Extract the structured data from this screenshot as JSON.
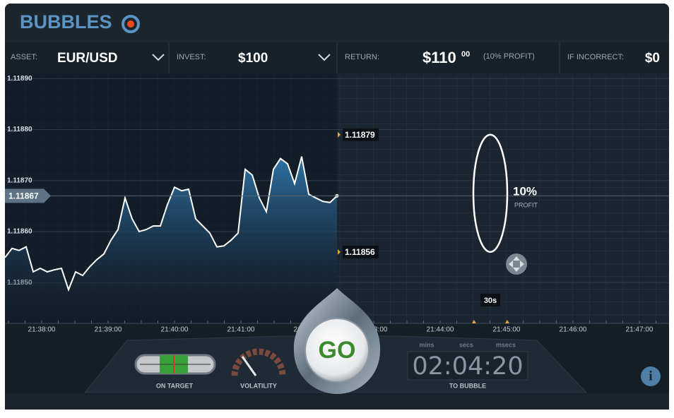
{
  "header": {
    "logo": "BUBBLES"
  },
  "toolbar": {
    "asset_label": "ASSET:",
    "asset": "EUR/USD",
    "invest_label": "INVEST:",
    "invest": "$100",
    "return_label": "RETURN:",
    "return": "$110",
    "return_cents": "00",
    "return_note": "(10% PROFIT)",
    "incorrect_label": "IF INCORRECT:",
    "incorrect": "$0"
  },
  "chart_data": {
    "type": "line",
    "color": "#ffffff",
    "values": [
      1.118549,
      1.118567,
      1.118563,
      1.11857,
      1.118521,
      1.118528,
      1.118521,
      1.118525,
      1.118528,
      1.118486,
      1.118521,
      1.118514,
      1.118531,
      1.118545,
      1.118556,
      1.118583,
      1.118604,
      1.118666,
      1.118625,
      1.1186,
      1.118604,
      1.118611,
      1.118611,
      1.118653,
      1.118687,
      1.11868,
      1.118683,
      1.118625,
      1.118611,
      1.118597,
      1.11857,
      1.118572,
      1.118583,
      1.118597,
      1.118722,
      1.118711,
      1.118666,
      1.118639,
      1.118722,
      1.118743,
      1.118733,
      1.118694,
      1.118747,
      1.118673,
      1.118666,
      1.118659,
      1.118657,
      1.11867
    ],
    "ylim": [
      1.11842,
      1.11891
    ],
    "yticks": [
      {
        "value": 1.1189,
        "label": "1.11890"
      },
      {
        "value": 1.1188,
        "label": "1.11880"
      },
      {
        "value": 1.1187,
        "label": "1.11870"
      },
      {
        "value": 1.1186,
        "label": "1.11860"
      },
      {
        "value": 1.1185,
        "label": "1.11850"
      }
    ],
    "xtick_labels": [
      "21:38:00",
      "21:39:00",
      "21:40:00",
      "21:41:00",
      "21:42:00",
      "21:43:00",
      "21:44:00",
      "21:45:00",
      "21:46:00",
      "21:47:00"
    ],
    "current": {
      "value": 1.11867,
      "label": "1.11867"
    },
    "levels": [
      {
        "value": 1.11879,
        "label": "1.11879"
      },
      {
        "value": 1.11856,
        "label": "1.11856"
      }
    ]
  },
  "bubble": {
    "profit": "10%",
    "profit_label": "PROFIT",
    "timer": "30s"
  },
  "controls": {
    "on_target": "ON TARGET",
    "volatility": "VOLATILITY",
    "go": "GO",
    "units": [
      "mins",
      "secs",
      "msecs"
    ],
    "countdown": "02:04:20",
    "to_bubble": "TO BUBBLE",
    "info": "i"
  }
}
